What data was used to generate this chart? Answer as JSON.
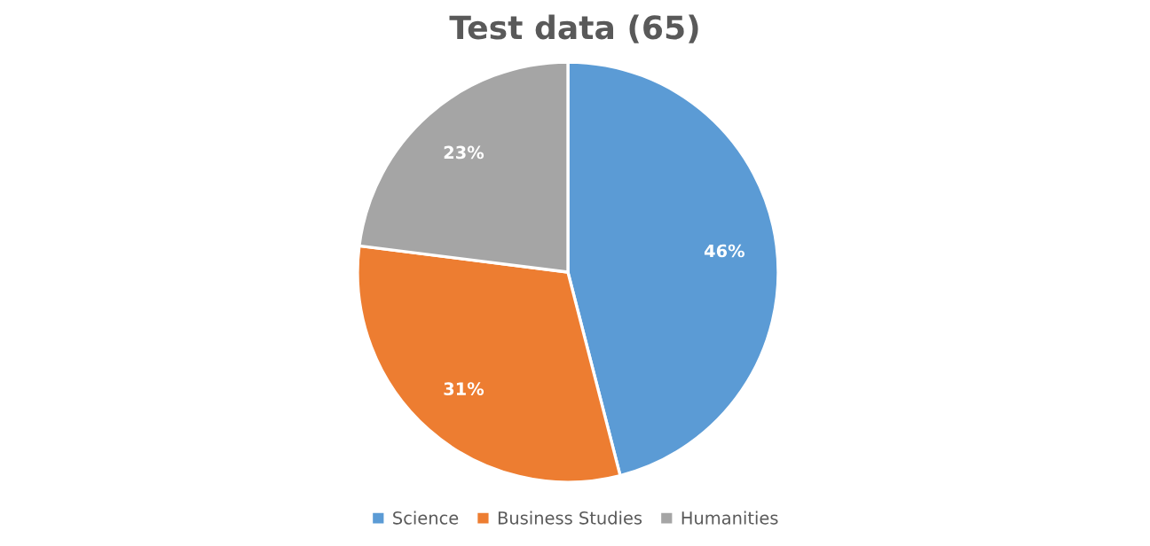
{
  "chart_data": {
    "type": "pie",
    "title": "Test data (65)",
    "categories": [
      "Science",
      "Business Studies",
      "Humanities"
    ],
    "values": [
      46,
      31,
      23
    ],
    "colors": [
      "#5b9bd5",
      "#ed7d31",
      "#a5a5a5"
    ],
    "value_labels": [
      "46%",
      "31%",
      "23%"
    ],
    "legend": "bottom"
  }
}
